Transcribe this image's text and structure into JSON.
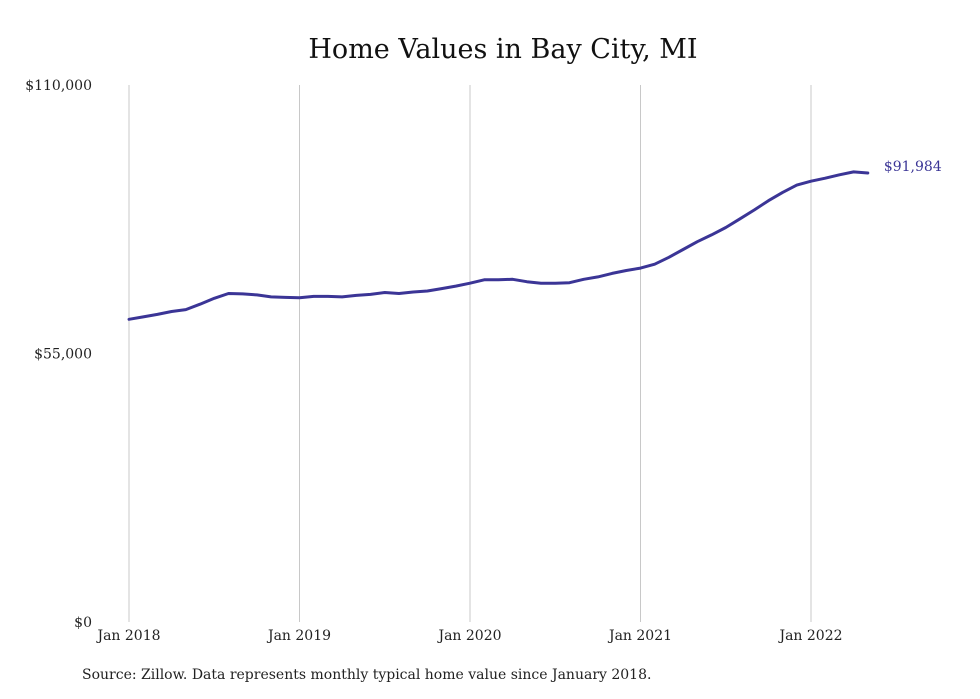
{
  "chart_data": {
    "type": "line",
    "title": "Home Values in Bay City, MI",
    "xlabel": "",
    "ylabel": "",
    "ylim": [
      0,
      110000
    ],
    "y_ticks": [
      {
        "value": 0,
        "label": "$0"
      },
      {
        "value": 55000,
        "label": "$55,000"
      },
      {
        "value": 110000,
        "label": "$110,000"
      }
    ],
    "x_ticks": [
      {
        "value": "2018-01",
        "label": "Jan 2018"
      },
      {
        "value": "2019-01",
        "label": "Jan 2019"
      },
      {
        "value": "2020-01",
        "label": "Jan 2020"
      },
      {
        "value": "2021-01",
        "label": "Jan 2021"
      },
      {
        "value": "2022-01",
        "label": "Jan 2022"
      }
    ],
    "grid": "vertical",
    "series": [
      {
        "color": "#3b3596",
        "x": [
          "2018-01",
          "2018-02",
          "2018-03",
          "2018-04",
          "2018-05",
          "2018-06",
          "2018-07",
          "2018-08",
          "2018-09",
          "2018-10",
          "2018-11",
          "2018-12",
          "2019-01",
          "2019-02",
          "2019-03",
          "2019-04",
          "2019-05",
          "2019-06",
          "2019-07",
          "2019-08",
          "2019-09",
          "2019-10",
          "2019-11",
          "2019-12",
          "2020-01",
          "2020-02",
          "2020-03",
          "2020-04",
          "2020-05",
          "2020-06",
          "2020-07",
          "2020-08",
          "2020-09",
          "2020-10",
          "2020-11",
          "2020-12",
          "2021-01",
          "2021-02",
          "2021-03",
          "2021-04",
          "2021-05",
          "2021-06",
          "2021-07",
          "2021-08",
          "2021-09",
          "2021-10",
          "2021-11",
          "2021-12",
          "2022-01",
          "2022-02",
          "2022-03",
          "2022-04",
          "2022-05"
        ],
        "values": [
          62000,
          62500,
          63000,
          63600,
          64000,
          65100,
          66300,
          67300,
          67200,
          67000,
          66600,
          66500,
          66400,
          66700,
          66700,
          66600,
          66900,
          67100,
          67500,
          67300,
          67600,
          67800,
          68300,
          68800,
          69400,
          70100,
          70100,
          70200,
          69700,
          69400,
          69400,
          69500,
          70200,
          70700,
          71400,
          72000,
          72500,
          73300,
          74700,
          76300,
          77900,
          79300,
          80800,
          82600,
          84400,
          86300,
          88000,
          89500,
          90300,
          90900,
          91600,
          92200,
          91984
        ],
        "end_label": "$91,984"
      }
    ]
  },
  "footer": {
    "source": "Source: Zillow. Data represents monthly typical home value since January 2018."
  }
}
